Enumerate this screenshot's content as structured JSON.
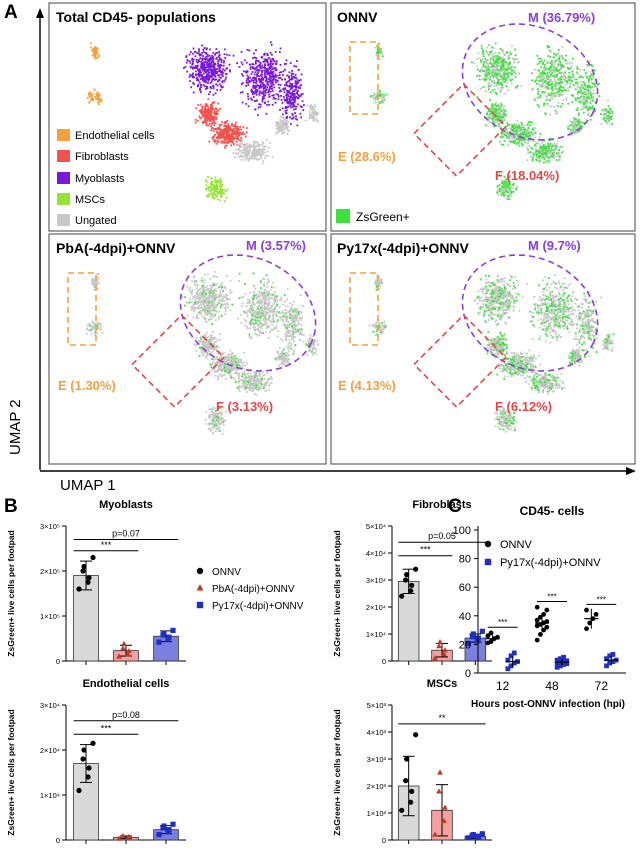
{
  "figure": {
    "panel_labels": {
      "a": "A",
      "b": "B",
      "c": "C"
    },
    "umap_axis": {
      "x": "UMAP 1",
      "y": "UMAP 2"
    }
  },
  "umap": {
    "panels": [
      {
        "title": "Total CD45- populations",
        "legend": [
          {
            "label": "Endothelial cells",
            "color": "#f5a03c"
          },
          {
            "label": "Fibroblasts",
            "color": "#f2524e"
          },
          {
            "label": "Myoblasts",
            "color": "#7a18d6"
          },
          {
            "label": "MSCs",
            "color": "#94e336"
          },
          {
            "label": "Ungated",
            "color": "#c8c8c8"
          }
        ]
      },
      {
        "title": "ONNV",
        "m": "M (36.79%)",
        "f": "F (18.04%)",
        "e": "E (28.6%)",
        "legend": [
          {
            "label": "ZsGreen+",
            "color": "#3de03d"
          }
        ]
      },
      {
        "title": "PbA(-4dpi)+ONNV",
        "m": "M (3.57%)",
        "f": "F (3.13%)",
        "e": "E (1.30%)"
      },
      {
        "title": "Py17x(-4dpi)+ONNV",
        "m": "M (9.7%)",
        "f": "F (6.12%)",
        "e": "E (4.13%)"
      }
    ],
    "colors": {
      "myoblast_gate": "#8a3fd6",
      "fibroblast_gate": "#e04848",
      "endothelial_gate": "#f5a03c",
      "zsgreen": "#3de03d"
    }
  },
  "chart_data": [
    {
      "type": "bar",
      "title": "Myoblasts",
      "ylabel": "ZsGreen+ live cells per footpad",
      "ylim": [
        0,
        300000
      ],
      "ytick_labels": [
        "0",
        "1×10⁵",
        "2×10⁵",
        "3×10⁵"
      ],
      "categories": [
        "ONNV",
        "PbA(-4dpi)+ONNV",
        "Py17x(-4dpi)+ONNV"
      ],
      "values": [
        190000,
        23000,
        55000
      ],
      "errors": [
        32000,
        12000,
        12000
      ],
      "points": [
        [
          160000,
          175000,
          185000,
          200000,
          210000,
          230000
        ],
        [
          10000,
          15000,
          22000,
          28000,
          38000
        ],
        [
          42000,
          48000,
          53000,
          58000,
          62000,
          68000
        ]
      ],
      "annotations": [
        {
          "text": "p=0.07",
          "from": 0,
          "to": 2,
          "y": 270000
        },
        {
          "text": "***",
          "from": 0,
          "to": 1,
          "y": 245000
        }
      ],
      "legend": [
        {
          "label": "ONNV",
          "marker": "circle",
          "color": "#000000"
        },
        {
          "label": "PbA(-4dpi)+ONNV",
          "marker": "triangle",
          "color": "#c0392b"
        },
        {
          "label": "Py17x(-4dpi)+ONNV",
          "marker": "square",
          "color": "#1f2fbf"
        }
      ]
    },
    {
      "type": "bar",
      "title": "Fibroblasts",
      "ylabel": "ZsGreen+ live cells per footpad",
      "ylim": [
        0,
        50000
      ],
      "ytick_labels": [
        "0",
        "1×10⁴",
        "2×10⁴",
        "3×10⁴",
        "4×10⁴",
        "5×10⁴"
      ],
      "categories": [
        "ONNV",
        "PbA(-4dpi)+ONNV",
        "Py17x(-4dpi)+ONNV"
      ],
      "values": [
        29500,
        4000,
        8500
      ],
      "errors": [
        4500,
        2500,
        1500
      ],
      "points": [
        [
          24000,
          26000,
          28000,
          30000,
          32000,
          34000
        ],
        [
          1000,
          2500,
          4000,
          5500,
          7000
        ],
        [
          6500,
          7500,
          8500,
          9000,
          10000,
          11000
        ]
      ],
      "annotations": [
        {
          "text": "p=0.05",
          "from": 0,
          "to": 2,
          "y": 44000
        },
        {
          "text": "***",
          "from": 0,
          "to": 1,
          "y": 39000
        }
      ]
    },
    {
      "type": "bar",
      "title": "Endothelial cells",
      "ylabel": "ZsGreen+ live cells per footpad",
      "ylim": [
        0,
        30000
      ],
      "ytick_labels": [
        "0",
        "1×10⁴",
        "2×10⁴",
        "3×10⁴"
      ],
      "categories": [
        "ONNV",
        "PbA(-4dpi)+ONNV",
        "Py17x(-4dpi)+ONNV"
      ],
      "values": [
        17000,
        600,
        2300
      ],
      "errors": [
        4200,
        300,
        900
      ],
      "points": [
        [
          11000,
          14000,
          16000,
          18000,
          20000,
          21500
        ],
        [
          300,
          500,
          700,
          900
        ],
        [
          1200,
          1800,
          2300,
          2700,
          3100,
          3500
        ]
      ],
      "annotations": [
        {
          "text": "p=0.08",
          "from": 0,
          "to": 2,
          "y": 26500
        },
        {
          "text": "***",
          "from": 0,
          "to": 1,
          "y": 23500
        }
      ]
    },
    {
      "type": "bar",
      "title": "MSCs",
      "ylabel": "ZsGreen+ live cells per footpad",
      "ylim": [
        0,
        5000
      ],
      "ytick_labels": [
        "0",
        "1×10³",
        "2×10³",
        "3×10³",
        "4×10³",
        "5×10³"
      ],
      "categories": [
        "ONNV",
        "PbA(-4dpi)+ONNV",
        "Py17x(-4dpi)+ONNV"
      ],
      "values": [
        2000,
        1100,
        130
      ],
      "errors": [
        1100,
        950,
        80
      ],
      "points": [
        [
          1100,
          1400,
          1800,
          2200,
          3000,
          3900
        ],
        [
          200,
          700,
          1200,
          1800,
          2500
        ],
        [
          80,
          110,
          140,
          170,
          200,
          230
        ]
      ],
      "annotations": [
        {
          "text": "**",
          "from": 0,
          "to": 2,
          "y": 4300
        }
      ]
    },
    {
      "type": "scatter",
      "title": "CD45- cells",
      "xlabel": "Hours post-ONNV infection (hpi)",
      "ylabel": "",
      "ylim": [
        0,
        100
      ],
      "yticks": [
        0,
        20,
        40,
        60,
        80,
        100
      ],
      "categories": [
        "12",
        "48",
        "72"
      ],
      "series": [
        {
          "name": "ONNV",
          "marker": "circle",
          "color": "#000000",
          "mean": [
            24,
            35,
            38
          ],
          "sd": [
            2.5,
            6,
            7
          ],
          "values": [
            [
              21,
              22,
              24,
              25,
              26,
              28
            ],
            [
              23,
              27,
              30,
              32,
              33,
              34,
              35,
              36,
              37,
              39,
              41,
              44,
              46
            ],
            [
              31,
              35,
              38,
              41,
              44
            ]
          ]
        },
        {
          "name": "Py17x(-4dpi)+ONNV",
          "marker": "square",
          "color": "#1f2fbf",
          "mean": [
            8,
            7.5,
            9
          ],
          "sd": [
            4,
            2,
            3
          ],
          "values": [
            [
              3,
              5,
              7,
              8,
              9,
              12,
              14
            ],
            [
              4,
              5,
              6,
              6.5,
              7,
              7.5,
              8,
              8.5,
              9,
              10,
              11
            ],
            [
              5,
              7,
              8,
              9,
              10,
              12,
              13
            ]
          ]
        }
      ],
      "significance": [
        "***",
        "***",
        "***"
      ]
    }
  ]
}
